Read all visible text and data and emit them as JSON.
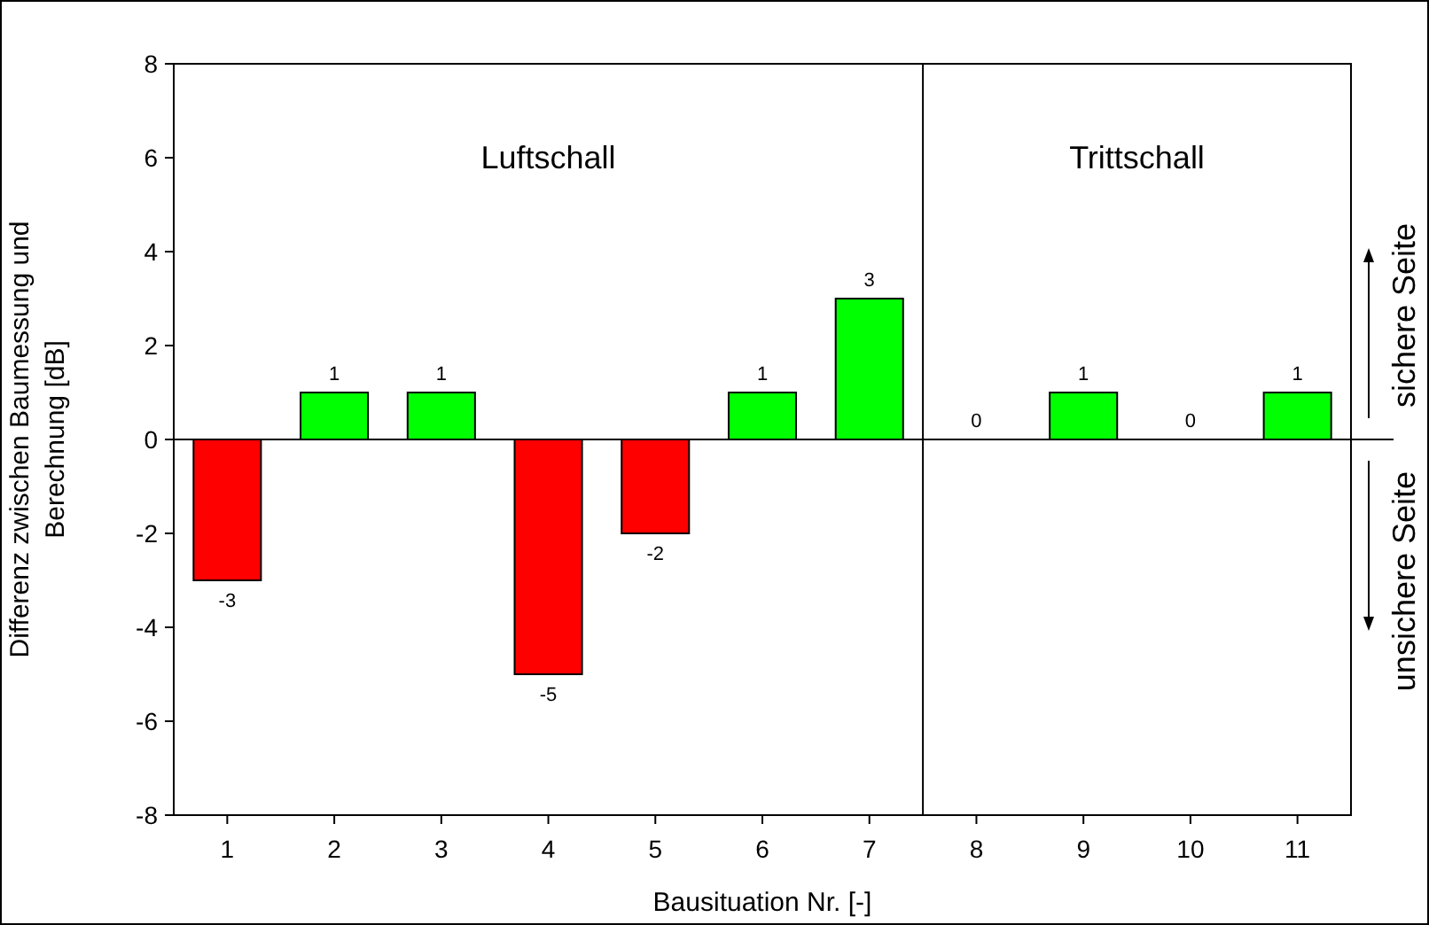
{
  "chart_data": {
    "type": "bar",
    "xlabel": "Bausituation Nr. [-]",
    "ylabel": "Differenz zwischen Baumessung und Berechnung [dB]",
    "x": [
      1,
      2,
      3,
      4,
      5,
      6,
      7,
      8,
      9,
      10,
      11
    ],
    "values": [
      -3,
      1,
      1,
      -5,
      -2,
      1,
      3,
      0,
      1,
      0,
      1
    ],
    "colors": [
      "#ff0000",
      "#00ff00",
      "#00ff00",
      "#ff0000",
      "#ff0000",
      "#00ff00",
      "#00ff00",
      "#00ff00",
      "#00ff00",
      "#00ff00",
      "#00ff00"
    ],
    "xlim": [
      0.5,
      11.5
    ],
    "xticks": [
      1,
      2,
      3,
      4,
      5,
      6,
      7,
      8,
      9,
      10,
      11
    ],
    "ylim": [
      -8,
      8
    ],
    "yticks": [
      -8,
      -6,
      -4,
      -2,
      0,
      2,
      4,
      6,
      8
    ],
    "data_labels": true,
    "ref_lines": [
      {
        "axis": "x",
        "value": 7.5,
        "color": "#000000"
      }
    ],
    "annotations": [
      "Luftschall",
      "Trittschall",
      "sichere Seite",
      "unsichere Seite"
    ]
  }
}
